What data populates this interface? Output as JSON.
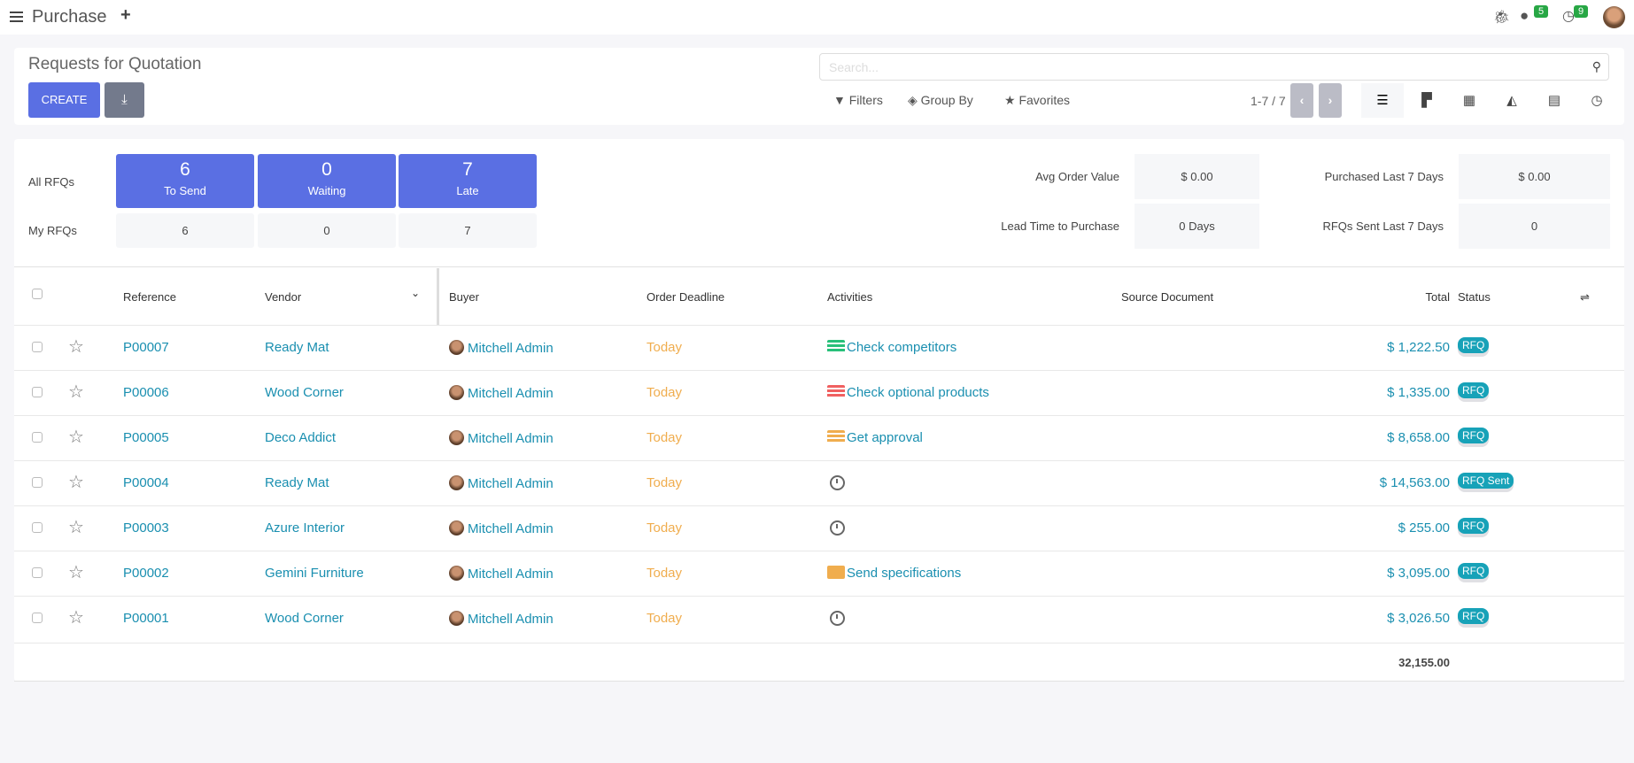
{
  "app": {
    "title": "Purchase",
    "badges": {
      "messages": "5",
      "activities": "9"
    }
  },
  "control": {
    "title": "Requests for Quotation",
    "create_label": "CREATE",
    "search_placeholder": "Search...",
    "filters": "Filters",
    "group_by": "Group By",
    "favorites": "Favorites",
    "pager": "1-7 / 7"
  },
  "dashboard": {
    "all_rfqs": "All RFQs",
    "my_rfqs": "My RFQs",
    "big": [
      {
        "n": "6",
        "l": "To Send"
      },
      {
        "n": "0",
        "l": "Waiting"
      },
      {
        "n": "7",
        "l": "Late"
      }
    ],
    "mine": [
      "6",
      "0",
      "7"
    ],
    "kpis": [
      {
        "label": "Avg Order Value",
        "value": "$ 0.00"
      },
      {
        "label": "Purchased Last 7 Days",
        "value": "$ 0.00"
      },
      {
        "label": "Lead Time to Purchase",
        "value": "0 Days"
      },
      {
        "label": "RFQs Sent Last 7 Days",
        "value": "0"
      }
    ]
  },
  "table": {
    "headers": {
      "reference": "Reference",
      "vendor": "Vendor",
      "buyer": "Buyer",
      "deadline": "Order Deadline",
      "activities": "Activities",
      "source": "Source Document",
      "total": "Total",
      "status": "Status"
    },
    "rows": [
      {
        "ref": "P00007",
        "vendor": "Ready Mat",
        "buyer": "Mitchell Admin",
        "deadline": "Today",
        "activity": "Check competitors",
        "activity_icon": "list-icon",
        "activity_color": "#28c07a",
        "total": "$ 1,222.50",
        "status": "RFQ"
      },
      {
        "ref": "P00006",
        "vendor": "Wood Corner",
        "buyer": "Mitchell Admin",
        "deadline": "Today",
        "activity": "Check optional products",
        "activity_icon": "list-icon",
        "activity_color": "#f06060",
        "total": "$ 1,335.00",
        "status": "RFQ"
      },
      {
        "ref": "P00005",
        "vendor": "Deco Addict",
        "buyer": "Mitchell Admin",
        "deadline": "Today",
        "activity": "Get approval",
        "activity_icon": "list-icon",
        "activity_color": "#f0ad4e",
        "total": "$ 8,658.00",
        "status": "RFQ"
      },
      {
        "ref": "P00004",
        "vendor": "Ready Mat",
        "buyer": "Mitchell Admin",
        "deadline": "Today",
        "activity": "",
        "activity_icon": "clock-icon",
        "total": "$ 14,563.00",
        "status": "RFQ Sent"
      },
      {
        "ref": "P00003",
        "vendor": "Azure Interior",
        "buyer": "Mitchell Admin",
        "deadline": "Today",
        "activity": "",
        "activity_icon": "clock-icon",
        "total": "$ 255.00",
        "status": "RFQ"
      },
      {
        "ref": "P00002",
        "vendor": "Gemini Furniture",
        "buyer": "Mitchell Admin",
        "deadline": "Today",
        "activity": "Send specifications",
        "activity_icon": "envelope-icon",
        "activity_color": "#f0ad4e",
        "total": "$ 3,095.00",
        "status": "RFQ"
      },
      {
        "ref": "P00001",
        "vendor": "Wood Corner",
        "buyer": "Mitchell Admin",
        "deadline": "Today",
        "activity": "",
        "activity_icon": "clock-icon",
        "total": "$ 3,026.50",
        "status": "RFQ"
      }
    ],
    "sum": "32,155.00"
  }
}
